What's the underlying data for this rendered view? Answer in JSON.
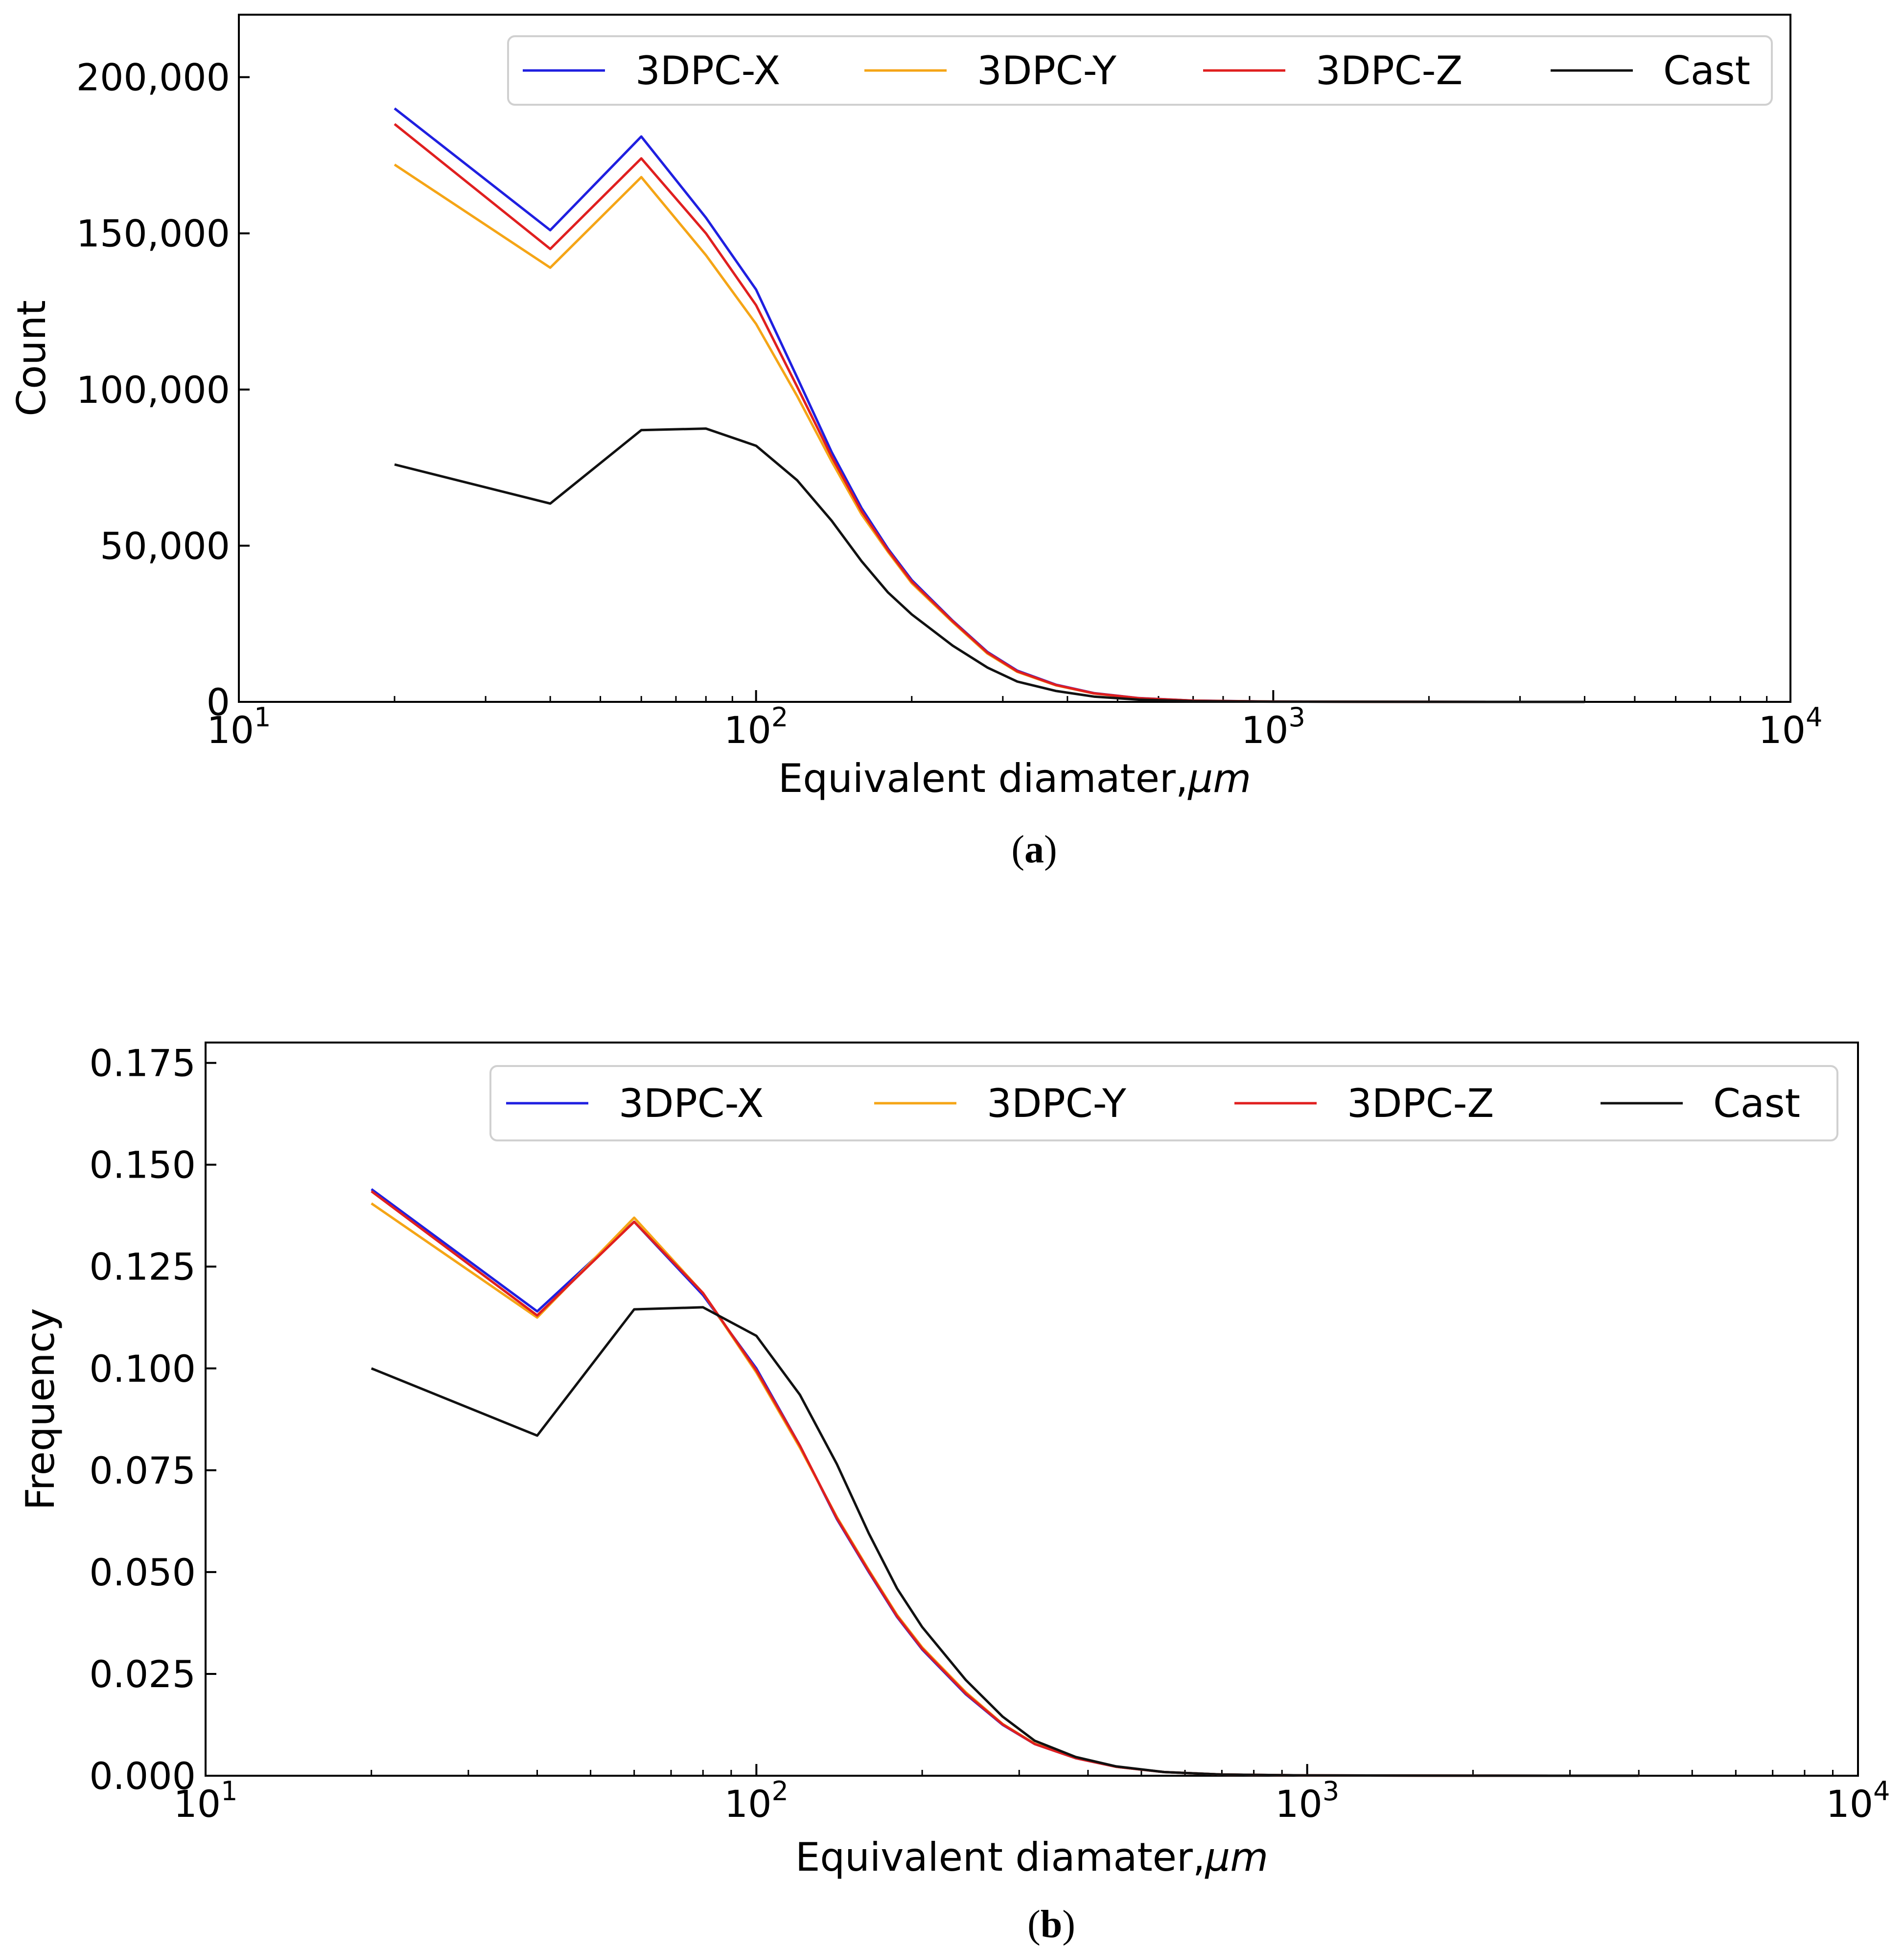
{
  "chart_data": [
    {
      "type": "line",
      "panel": "a",
      "caption_letter": "a",
      "xscale": "log",
      "xlim": [
        10,
        10000
      ],
      "ylim": [
        0,
        220000
      ],
      "xlabel": "Equivalent diamater,",
      "xlabel_unit": "μm",
      "ylabel": "Count",
      "y_ticks": [
        0,
        50000,
        100000,
        150000,
        200000
      ],
      "y_tick_labels": [
        "0",
        "50,000",
        "100,000",
        "150,000",
        "200,000"
      ],
      "x_ticks": [
        {
          "value": 10,
          "base": "10",
          "exp": "1"
        },
        {
          "value": 100,
          "base": "10",
          "exp": "2"
        },
        {
          "value": 1000,
          "base": "10",
          "exp": "3"
        },
        {
          "value": 10000,
          "base": "10",
          "exp": "4"
        }
      ],
      "legend_position": "top-right",
      "x": [
        20,
        40,
        60,
        80,
        100,
        120,
        140,
        160,
        180,
        200,
        240,
        280,
        320,
        380,
        450,
        550,
        700,
        1000,
        2000,
        4000
      ],
      "series": [
        {
          "name": "3DPC-X",
          "color": "#1f1fe0",
          "values": [
            190000,
            151000,
            181000,
            155000,
            132000,
            104000,
            80000,
            62000,
            49000,
            39000,
            26000,
            16000,
            10000,
            5500,
            2800,
            1200,
            400,
            100,
            20,
            0
          ]
        },
        {
          "name": "3DPC-Y",
          "color": "#f5a516",
          "values": [
            172000,
            139000,
            168000,
            143000,
            121000,
            98000,
            77000,
            60000,
            48000,
            38000,
            25500,
            15500,
            9600,
            5300,
            2700,
            1150,
            380,
            95,
            18,
            0
          ]
        },
        {
          "name": "3DPC-Z",
          "color": "#e01f1f",
          "values": [
            185000,
            145000,
            174000,
            150000,
            127000,
            101000,
            78500,
            61000,
            48500,
            38500,
            25800,
            15800,
            9800,
            5400,
            2750,
            1180,
            390,
            98,
            19,
            0
          ]
        },
        {
          "name": "Cast",
          "color": "#111111",
          "values": [
            76000,
            63500,
            87000,
            87500,
            82000,
            71000,
            58000,
            45000,
            35000,
            28000,
            18000,
            11000,
            6500,
            3500,
            1700,
            700,
            220,
            60,
            10,
            0
          ]
        }
      ]
    },
    {
      "type": "line",
      "panel": "b",
      "caption_letter": "b",
      "xscale": "log",
      "xlim": [
        10,
        10000
      ],
      "ylim": [
        0,
        0.18
      ],
      "xlabel": "Equivalent diamater,",
      "xlabel_unit": "μm",
      "ylabel": "Frequency",
      "y_ticks": [
        0,
        0.025,
        0.05,
        0.075,
        0.1,
        0.125,
        0.15,
        0.175
      ],
      "y_tick_labels": [
        "0.000",
        "0.025",
        "0.050",
        "0.075",
        "0.100",
        "0.125",
        "0.150",
        "0.175"
      ],
      "x_ticks": [
        {
          "value": 10,
          "base": "10",
          "exp": "1"
        },
        {
          "value": 100,
          "base": "10",
          "exp": "2"
        },
        {
          "value": 1000,
          "base": "10",
          "exp": "3"
        },
        {
          "value": 10000,
          "base": "10",
          "exp": "4"
        }
      ],
      "legend_position": "top-right",
      "x": [
        20,
        40,
        60,
        80,
        100,
        120,
        140,
        160,
        180,
        200,
        240,
        280,
        320,
        380,
        450,
        550,
        700,
        1000,
        2000,
        4000
      ],
      "series": [
        {
          "name": "3DPC-X",
          "color": "#1f1fe0",
          "values": [
            0.144,
            0.114,
            0.136,
            0.118,
            0.1,
            0.081,
            0.063,
            0.05,
            0.039,
            0.031,
            0.02,
            0.0125,
            0.0078,
            0.0043,
            0.0022,
            0.0009,
            0.0003,
            8e-05,
            1e-05,
            0
          ]
        },
        {
          "name": "3DPC-Y",
          "color": "#f5a516",
          "values": [
            0.1405,
            0.1125,
            0.137,
            0.1185,
            0.099,
            0.0805,
            0.0635,
            0.0505,
            0.0395,
            0.0315,
            0.0205,
            0.0127,
            0.0079,
            0.0044,
            0.0022,
            0.0009,
            0.0003,
            8e-05,
            1e-05,
            0
          ]
        },
        {
          "name": "3DPC-Z",
          "color": "#e01f1f",
          "values": [
            0.1435,
            0.113,
            0.136,
            0.1185,
            0.0995,
            0.081,
            0.0632,
            0.0502,
            0.0392,
            0.0312,
            0.0202,
            0.0126,
            0.0078,
            0.0043,
            0.0022,
            0.0009,
            0.0003,
            8e-05,
            1e-05,
            0
          ]
        },
        {
          "name": "Cast",
          "color": "#111111",
          "values": [
            0.1,
            0.0835,
            0.1145,
            0.115,
            0.108,
            0.0935,
            0.0765,
            0.0595,
            0.046,
            0.0365,
            0.0235,
            0.0145,
            0.0086,
            0.0046,
            0.0023,
            0.0009,
            0.0003,
            8e-05,
            1e-05,
            0
          ]
        }
      ]
    }
  ]
}
